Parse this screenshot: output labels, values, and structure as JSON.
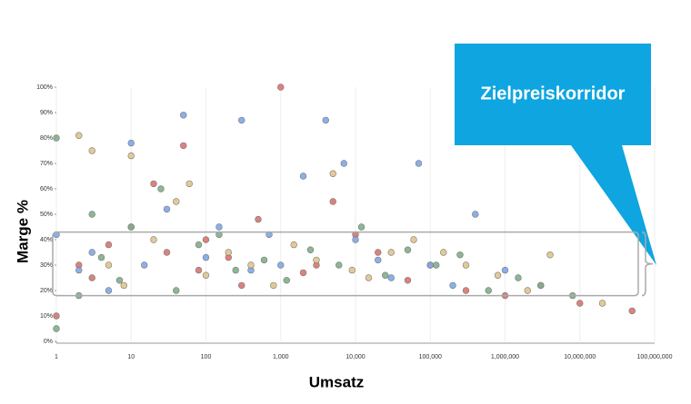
{
  "chart_data": {
    "type": "scatter",
    "x_label": "Umsatz",
    "y_label": "Marge %",
    "annotation": "Zielpreiskorridor",
    "corridor": [
      18,
      43
    ],
    "log_x": true,
    "grid": true,
    "xlim": [
      1,
      100000000
    ],
    "xticks": [
      1,
      10,
      100,
      {
        "value": 1000,
        "label": "1,000"
      },
      {
        "value": 10000,
        "label": "10,000"
      },
      {
        "value": 100000,
        "label": "100,000"
      },
      {
        "value": 1000000,
        "label": "1,000,000"
      },
      {
        "value": 10000000,
        "label": "10,000,000"
      },
      {
        "value": 100000000,
        "label": "100,000,000"
      }
    ],
    "ylim": [
      0,
      100
    ],
    "yticks": [
      {
        "value": 0,
        "label": "0%"
      },
      {
        "value": 10,
        "label": "10%"
      },
      {
        "value": 20,
        "label": "20%"
      },
      {
        "value": 30,
        "label": "30%"
      },
      {
        "value": 40,
        "label": "40%"
      },
      {
        "value": 50,
        "label": "50%"
      },
      {
        "value": 60,
        "label": "60%"
      },
      {
        "value": 70,
        "label": "70%"
      },
      {
        "value": 80,
        "label": "80%"
      },
      {
        "value": 90,
        "label": "90%"
      },
      {
        "value": 100,
        "label": "100%"
      }
    ],
    "series": [
      {
        "color": "#d9736e",
        "x": [
          1,
          2,
          3,
          5,
          10,
          20,
          30,
          50,
          80,
          100,
          200,
          300,
          500,
          1000,
          2000,
          3000,
          5000,
          10000,
          20000,
          50000,
          100000,
          300000,
          1000000,
          3000000,
          10000000,
          50000000
        ],
        "values": [
          10,
          30,
          25,
          38,
          45,
          62,
          35,
          77,
          28,
          40,
          33,
          22,
          48,
          100,
          27,
          30,
          55,
          42,
          35,
          24,
          30,
          20,
          18,
          22,
          15,
          12
        ]
      },
      {
        "color": "#7ea6e6",
        "x": [
          1,
          2,
          3,
          5,
          10,
          15,
          30,
          50,
          100,
          150,
          300,
          400,
          700,
          1000,
          2000,
          4000,
          7000,
          10000,
          20000,
          30000,
          70000,
          100000,
          200000,
          400000,
          1000000
        ],
        "values": [
          42,
          28,
          35,
          20,
          78,
          30,
          52,
          89,
          33,
          45,
          87,
          28,
          42,
          30,
          65,
          87,
          70,
          40,
          32,
          25,
          70,
          30,
          22,
          50,
          28
        ]
      },
      {
        "color": "#e0c48a",
        "x": [
          2,
          3,
          5,
          8,
          10,
          20,
          40,
          60,
          100,
          200,
          400,
          800,
          1500,
          3000,
          5000,
          9000,
          15000,
          30000,
          60000,
          150000,
          300000,
          800000,
          2000000,
          4000000,
          20000000
        ],
        "values": [
          81,
          75,
          30,
          22,
          73,
          40,
          55,
          62,
          26,
          35,
          30,
          22,
          38,
          32,
          66,
          28,
          25,
          35,
          40,
          35,
          30,
          26,
          20,
          34,
          15
        ]
      },
      {
        "color": "#7fae8a",
        "x": [
          1,
          1,
          2,
          3,
          4,
          7,
          10,
          25,
          40,
          80,
          150,
          250,
          600,
          1200,
          2500,
          6000,
          12000,
          25000,
          50000,
          120000,
          250000,
          600000,
          1500000,
          3000000,
          8000000
        ],
        "values": [
          80,
          5,
          18,
          50,
          33,
          24,
          45,
          60,
          20,
          38,
          42,
          28,
          32,
          24,
          36,
          30,
          45,
          26,
          36,
          30,
          34,
          20,
          25,
          22,
          18
        ]
      }
    ]
  }
}
